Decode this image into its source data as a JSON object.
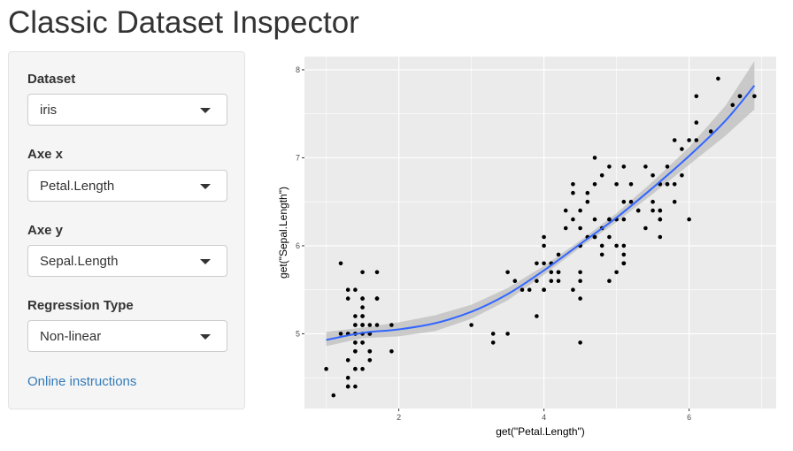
{
  "page": {
    "title": "Classic Dataset Inspector"
  },
  "sidebar": {
    "dataset": {
      "label": "Dataset",
      "value": "iris",
      "icon": "chevron-down-icon"
    },
    "axe_x": {
      "label": "Axe x",
      "value": "Petal.Length",
      "icon": "chevron-down-icon"
    },
    "axe_y": {
      "label": "Axe y",
      "value": "Sepal.Length",
      "icon": "chevron-down-icon"
    },
    "regression": {
      "label": "Regression Type",
      "value": "Non-linear",
      "icon": "chevron-down-icon"
    },
    "help_link": "Online instructions"
  },
  "colors": {
    "panel_bg": "#ebebeb",
    "grid": "#ffffff",
    "points": "#000000",
    "smooth_line": "#3366ff",
    "confidence_band": "#bebebe",
    "link": "#337ab7"
  },
  "chart_data": {
    "type": "scatter",
    "xlabel": "get(\"Petal.Length\")",
    "ylabel": "get(\"Sepal.Length\")",
    "xlim": [
      0.7,
      7.2
    ],
    "ylim": [
      4.15,
      8.15
    ],
    "x_ticks": [
      2,
      4,
      6
    ],
    "y_ticks": [
      5,
      6,
      7,
      8
    ],
    "x_tick_labels": [
      "2",
      "4",
      "6"
    ],
    "y_tick_labels": [
      "5",
      "6",
      "7",
      "8"
    ],
    "grid": true,
    "legend": "none",
    "points": [
      [
        1.4,
        5.1
      ],
      [
        1.4,
        4.9
      ],
      [
        1.3,
        4.7
      ],
      [
        1.5,
        4.6
      ],
      [
        1.4,
        5.0
      ],
      [
        1.7,
        5.4
      ],
      [
        1.4,
        4.6
      ],
      [
        1.5,
        5.0
      ],
      [
        1.4,
        4.4
      ],
      [
        1.5,
        4.9
      ],
      [
        1.5,
        5.4
      ],
      [
        1.6,
        4.8
      ],
      [
        1.4,
        4.8
      ],
      [
        1.1,
        4.3
      ],
      [
        1.2,
        5.8
      ],
      [
        1.5,
        5.7
      ],
      [
        1.3,
        5.4
      ],
      [
        1.4,
        5.1
      ],
      [
        1.7,
        5.7
      ],
      [
        1.5,
        5.1
      ],
      [
        1.7,
        5.4
      ],
      [
        1.5,
        5.1
      ],
      [
        1.0,
        4.6
      ],
      [
        1.7,
        5.1
      ],
      [
        1.9,
        4.8
      ],
      [
        1.6,
        5.0
      ],
      [
        1.6,
        5.0
      ],
      [
        1.5,
        5.2
      ],
      [
        1.4,
        5.2
      ],
      [
        1.6,
        4.7
      ],
      [
        1.6,
        4.8
      ],
      [
        1.5,
        5.4
      ],
      [
        1.5,
        5.2
      ],
      [
        1.4,
        5.5
      ],
      [
        1.5,
        4.9
      ],
      [
        1.2,
        5.0
      ],
      [
        1.3,
        5.5
      ],
      [
        1.4,
        4.9
      ],
      [
        1.3,
        4.4
      ],
      [
        1.5,
        5.1
      ],
      [
        1.3,
        5.0
      ],
      [
        1.3,
        4.5
      ],
      [
        1.3,
        4.4
      ],
      [
        1.6,
        5.0
      ],
      [
        1.9,
        5.1
      ],
      [
        1.4,
        4.8
      ],
      [
        1.6,
        5.1
      ],
      [
        1.4,
        4.6
      ],
      [
        1.5,
        5.3
      ],
      [
        1.4,
        5.0
      ],
      [
        4.7,
        7.0
      ],
      [
        4.5,
        6.4
      ],
      [
        4.9,
        6.9
      ],
      [
        4.0,
        5.5
      ],
      [
        4.6,
        6.5
      ],
      [
        4.5,
        5.7
      ],
      [
        4.7,
        6.3
      ],
      [
        3.3,
        4.9
      ],
      [
        4.6,
        6.6
      ],
      [
        3.9,
        5.2
      ],
      [
        3.5,
        5.0
      ],
      [
        4.2,
        5.9
      ],
      [
        4.0,
        6.0
      ],
      [
        4.7,
        6.1
      ],
      [
        3.6,
        5.6
      ],
      [
        4.4,
        6.7
      ],
      [
        4.5,
        5.6
      ],
      [
        4.1,
        5.8
      ],
      [
        4.5,
        6.2
      ],
      [
        3.9,
        5.6
      ],
      [
        4.8,
        5.9
      ],
      [
        4.0,
        6.1
      ],
      [
        4.9,
        6.3
      ],
      [
        4.7,
        6.1
      ],
      [
        4.3,
        6.4
      ],
      [
        4.4,
        6.6
      ],
      [
        4.8,
        6.8
      ],
      [
        5.0,
        6.7
      ],
      [
        4.5,
        6.0
      ],
      [
        3.5,
        5.7
      ],
      [
        3.8,
        5.5
      ],
      [
        3.7,
        5.5
      ],
      [
        3.9,
        5.8
      ],
      [
        5.1,
        6.0
      ],
      [
        4.5,
        5.4
      ],
      [
        4.5,
        6.0
      ],
      [
        4.7,
        6.7
      ],
      [
        4.4,
        6.3
      ],
      [
        4.1,
        5.6
      ],
      [
        4.0,
        5.5
      ],
      [
        4.4,
        5.5
      ],
      [
        4.6,
        6.1
      ],
      [
        4.0,
        5.8
      ],
      [
        3.3,
        5.0
      ],
      [
        4.2,
        5.6
      ],
      [
        4.2,
        5.7
      ],
      [
        4.2,
        5.7
      ],
      [
        4.3,
        6.2
      ],
      [
        3.0,
        5.1
      ],
      [
        4.1,
        5.7
      ],
      [
        6.0,
        6.3
      ],
      [
        5.1,
        5.8
      ],
      [
        5.9,
        7.1
      ],
      [
        5.6,
        6.3
      ],
      [
        5.8,
        6.5
      ],
      [
        6.6,
        7.6
      ],
      [
        4.5,
        4.9
      ],
      [
        6.3,
        7.3
      ],
      [
        5.8,
        6.7
      ],
      [
        6.1,
        7.2
      ],
      [
        5.1,
        6.5
      ],
      [
        5.3,
        6.4
      ],
      [
        5.5,
        6.8
      ],
      [
        5.0,
        5.7
      ],
      [
        5.1,
        5.8
      ],
      [
        5.3,
        6.4
      ],
      [
        5.5,
        6.5
      ],
      [
        6.7,
        7.7
      ],
      [
        6.9,
        7.7
      ],
      [
        5.0,
        6.0
      ],
      [
        5.7,
        6.9
      ],
      [
        4.9,
        5.6
      ],
      [
        6.7,
        7.7
      ],
      [
        4.9,
        6.3
      ],
      [
        5.7,
        6.7
      ],
      [
        6.0,
        7.2
      ],
      [
        4.8,
        6.2
      ],
      [
        4.9,
        6.1
      ],
      [
        5.6,
        6.4
      ],
      [
        5.8,
        7.2
      ],
      [
        6.1,
        7.4
      ],
      [
        6.4,
        7.9
      ],
      [
        5.6,
        6.4
      ],
      [
        5.1,
        6.3
      ],
      [
        5.6,
        6.1
      ],
      [
        6.1,
        7.7
      ],
      [
        5.6,
        6.3
      ],
      [
        5.5,
        6.4
      ],
      [
        4.8,
        6.0
      ],
      [
        5.4,
        6.9
      ],
      [
        5.6,
        6.7
      ],
      [
        5.1,
        6.9
      ],
      [
        5.1,
        5.8
      ],
      [
        5.9,
        6.8
      ],
      [
        5.7,
        6.7
      ],
      [
        5.2,
        6.7
      ],
      [
        5.0,
        6.3
      ],
      [
        5.2,
        6.5
      ],
      [
        5.4,
        6.2
      ],
      [
        5.1,
        5.9
      ]
    ],
    "smooth": {
      "x": [
        1.0,
        1.5,
        2.0,
        2.5,
        3.0,
        3.5,
        4.0,
        4.5,
        5.0,
        5.5,
        6.0,
        6.5,
        6.9
      ],
      "y": [
        4.93,
        5.01,
        5.05,
        5.12,
        5.25,
        5.45,
        5.72,
        6.02,
        6.32,
        6.66,
        7.02,
        7.42,
        7.82
      ],
      "lower": [
        4.86,
        4.95,
        4.97,
        5.03,
        5.17,
        5.38,
        5.67,
        5.98,
        6.27,
        6.59,
        6.92,
        7.25,
        7.55
      ],
      "upper": [
        5.02,
        5.07,
        5.13,
        5.21,
        5.33,
        5.52,
        5.77,
        6.06,
        6.37,
        6.73,
        7.12,
        7.59,
        8.1
      ]
    }
  }
}
